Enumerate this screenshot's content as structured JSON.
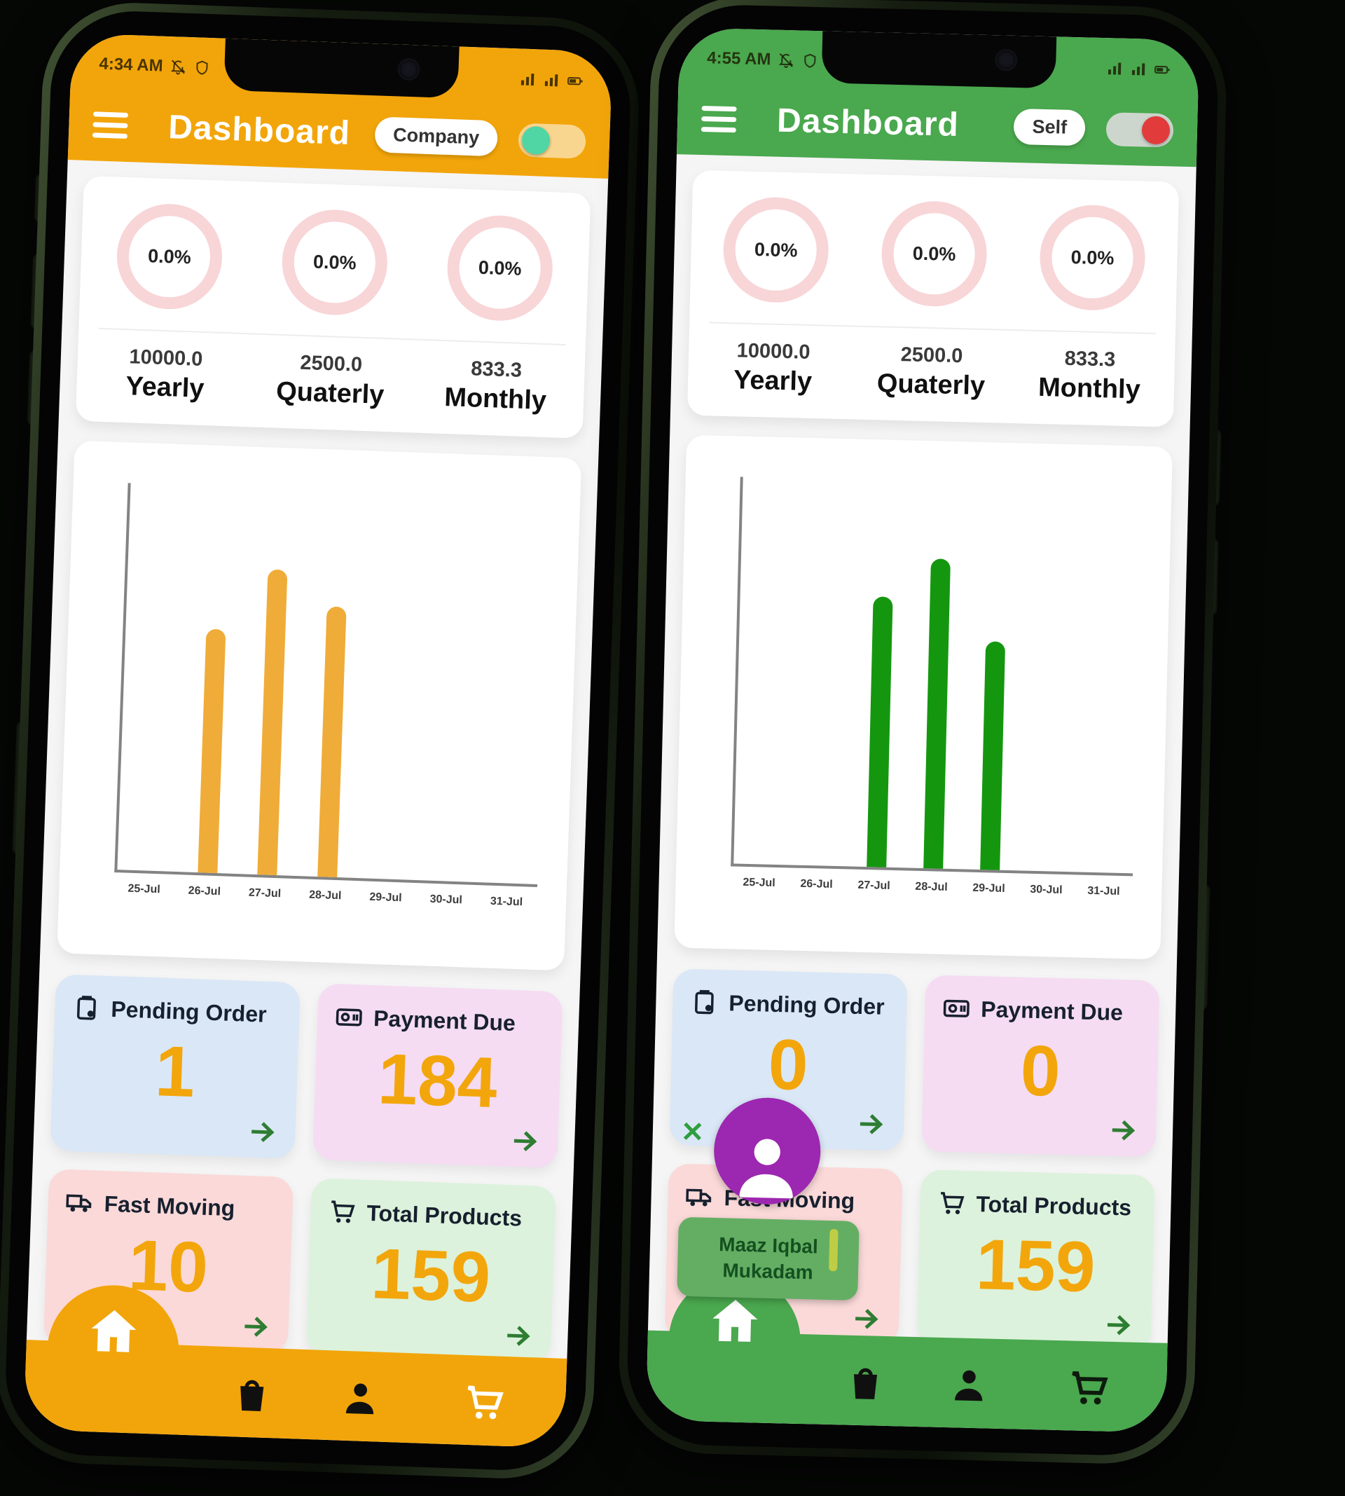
{
  "page": {
    "background": "#050705"
  },
  "phones": [
    {
      "name": "company-dashboard-phone",
      "status": {
        "time": "4:34 AM",
        "icons_left": [
          "bell-off-icon",
          "shield-icon"
        ],
        "icons_right": [
          "signal-icon",
          "signal-icon",
          "battery-icon"
        ]
      },
      "header": {
        "title": "Dashboard",
        "mode_label": "Company",
        "toggle_state": "off"
      },
      "theme": {
        "primary": "#F2A50A",
        "toggle_track": "rgba(255,255,255,0.55)",
        "toggle_knob": "#4FD6A4",
        "number_accent": "#F2A60C",
        "arrow_green": "#2E7D32",
        "ring_pink": "#F8D5D7"
      },
      "stats": [
        {
          "percent": "0.0%",
          "value": "10000.0",
          "label": "Yearly"
        },
        {
          "percent": "0.0%",
          "value": "2500.0",
          "label": "Quaterly"
        },
        {
          "percent": "0.0%",
          "value": "833.3",
          "label": "Monthly"
        }
      ],
      "chart": {
        "type": "bar",
        "x_labels": [
          "25-Jul",
          "26-Jul",
          "27-Jul",
          "28-Jul",
          "29-Jul",
          "30-Jul",
          "31-Jul"
        ],
        "bars": [
          {
            "x": "26-Jul",
            "height_pct": 63
          },
          {
            "x": "27-Jul",
            "height_pct": 79
          },
          {
            "x": "28-Jul",
            "height_pct": 70
          }
        ],
        "bar_color": "#F0AC38"
      },
      "cards": [
        {
          "title": "Pending Order",
          "value": "1",
          "icon": "clipboard-icon",
          "bg": "#DAE7F6"
        },
        {
          "title": "Payment Due",
          "value": "184",
          "icon": "payment-icon",
          "bg": "#F5DCF3"
        },
        {
          "title": "Fast Moving",
          "value": "10",
          "icon": "truck-icon",
          "bg": "#FBD9D9"
        },
        {
          "title": "Total Products",
          "value": "159",
          "icon": "cart-icon",
          "bg": "#DCF2DC"
        }
      ],
      "nav": {
        "items": [
          "home",
          "bag",
          "person",
          "cart"
        ],
        "active": "home"
      }
    },
    {
      "name": "self-dashboard-phone",
      "status": {
        "time": "4:55 AM",
        "icons_left": [
          "bell-off-icon",
          "shield-icon"
        ],
        "icons_right": [
          "signal-icon",
          "signal-icon",
          "battery-icon"
        ]
      },
      "header": {
        "title": "Dashboard",
        "mode_label": "Self",
        "toggle_state": "on"
      },
      "theme": {
        "primary": "#4AA84E",
        "toggle_track": "#CDD6CD",
        "toggle_knob": "#E23B3B",
        "number_accent": "#F2A60C",
        "arrow_green": "#2E7D32",
        "ring_pink": "#F8D5D7"
      },
      "stats": [
        {
          "percent": "0.0%",
          "value": "10000.0",
          "label": "Yearly"
        },
        {
          "percent": "0.0%",
          "value": "2500.0",
          "label": "Quaterly"
        },
        {
          "percent": "0.0%",
          "value": "833.3",
          "label": "Monthly"
        }
      ],
      "chart": {
        "type": "bar",
        "x_labels": [
          "25-Jul",
          "26-Jul",
          "27-Jul",
          "28-Jul",
          "29-Jul",
          "30-Jul",
          "31-Jul"
        ],
        "bars": [
          {
            "x": "27-Jul",
            "height_pct": 70
          },
          {
            "x": "28-Jul",
            "height_pct": 80
          },
          {
            "x": "29-Jul",
            "height_pct": 59
          }
        ],
        "bar_color": "#14970F"
      },
      "cards": [
        {
          "title": "Pending Order",
          "value": "0",
          "icon": "clipboard-icon",
          "bg": "#DAE7F6",
          "x_mark": "✕"
        },
        {
          "title": "Payment Due",
          "value": "0",
          "icon": "payment-icon",
          "bg": "#F5DCF3"
        },
        {
          "title": "Fast Moving",
          "value": "",
          "icon": "truck-icon",
          "bg": "#FBD9D9"
        },
        {
          "title": "Total Products",
          "value": "159",
          "icon": "cart-icon",
          "bg": "#DCF2DC"
        }
      ],
      "nav": {
        "items": [
          "home",
          "bag",
          "person",
          "cart"
        ],
        "active": "home"
      },
      "overlay": {
        "avatar": "user-avatar",
        "name": "Maaz Iqbal Mukadam"
      }
    }
  ]
}
